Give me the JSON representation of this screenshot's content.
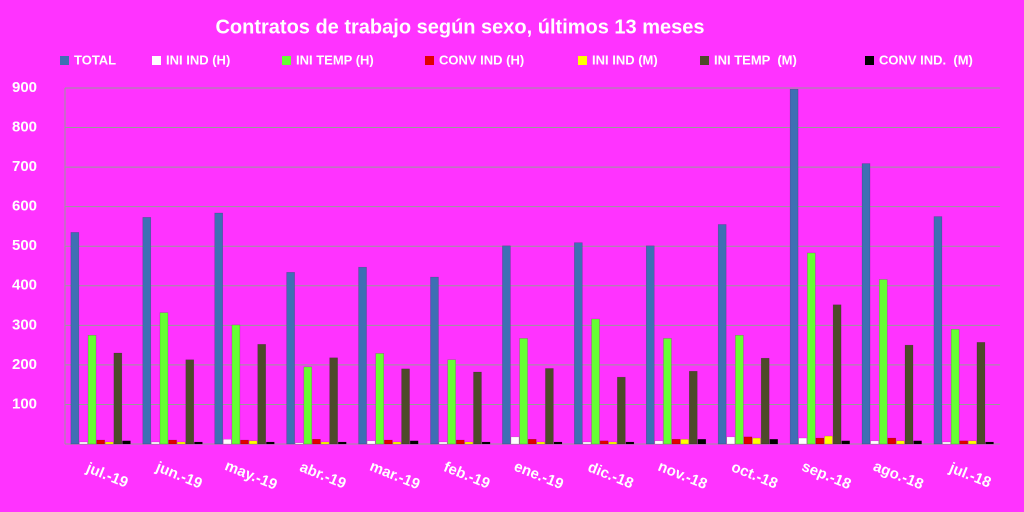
{
  "chart_data": {
    "type": "bar",
    "title": "Contratos de trabajo según sexo, últimos 13 meses",
    "categories": [
      "jul.-19",
      "jun.-19",
      "may.-19",
      "abr.-19",
      "mar.-19",
      "feb.-19",
      "ene.-19",
      "dic.-18",
      "nov.-18",
      "oct.-18",
      "sep.-18",
      "ago.-18",
      "jul.-18"
    ],
    "series": [
      {
        "name": "TOTAL",
        "color": "#3f6fb4",
        "values": [
          535,
          573,
          584,
          434,
          447,
          422,
          501,
          509,
          501,
          555,
          897,
          709,
          575
        ]
      },
      {
        "name": "INI IND (H)",
        "color": "#ffffff",
        "values": [
          5,
          5,
          12,
          3,
          8,
          5,
          18,
          5,
          8,
          18,
          15,
          8,
          5
        ]
      },
      {
        "name": "INI TEMP (H)",
        "color": "#66ff33",
        "values": [
          275,
          332,
          301,
          195,
          229,
          213,
          267,
          316,
          267,
          275,
          483,
          416,
          290
        ]
      },
      {
        "name": "CONV IND (H)",
        "color": "#e00000",
        "values": [
          10,
          10,
          10,
          12,
          10,
          10,
          12,
          8,
          12,
          18,
          15,
          15,
          8
        ]
      },
      {
        "name": "INI IND (M)",
        "color": "#ffff00",
        "values": [
          5,
          5,
          8,
          5,
          5,
          5,
          5,
          5,
          12,
          15,
          20,
          8,
          8
        ]
      },
      {
        "name": "INI TEMP  (M)",
        "color": "#4d4a2a",
        "values": [
          230,
          213,
          252,
          218,
          190,
          182,
          191,
          169,
          184,
          217,
          352,
          250,
          257
        ]
      },
      {
        "name": "CONV IND.  (M)",
        "color": "#000000",
        "values": [
          8,
          5,
          5,
          5,
          8,
          5,
          5,
          5,
          12,
          12,
          8,
          8,
          5
        ]
      }
    ],
    "ylim": [
      0,
      900
    ],
    "yticks": [
      100,
      200,
      300,
      400,
      500,
      600,
      700,
      800,
      900
    ],
    "grid": true
  }
}
